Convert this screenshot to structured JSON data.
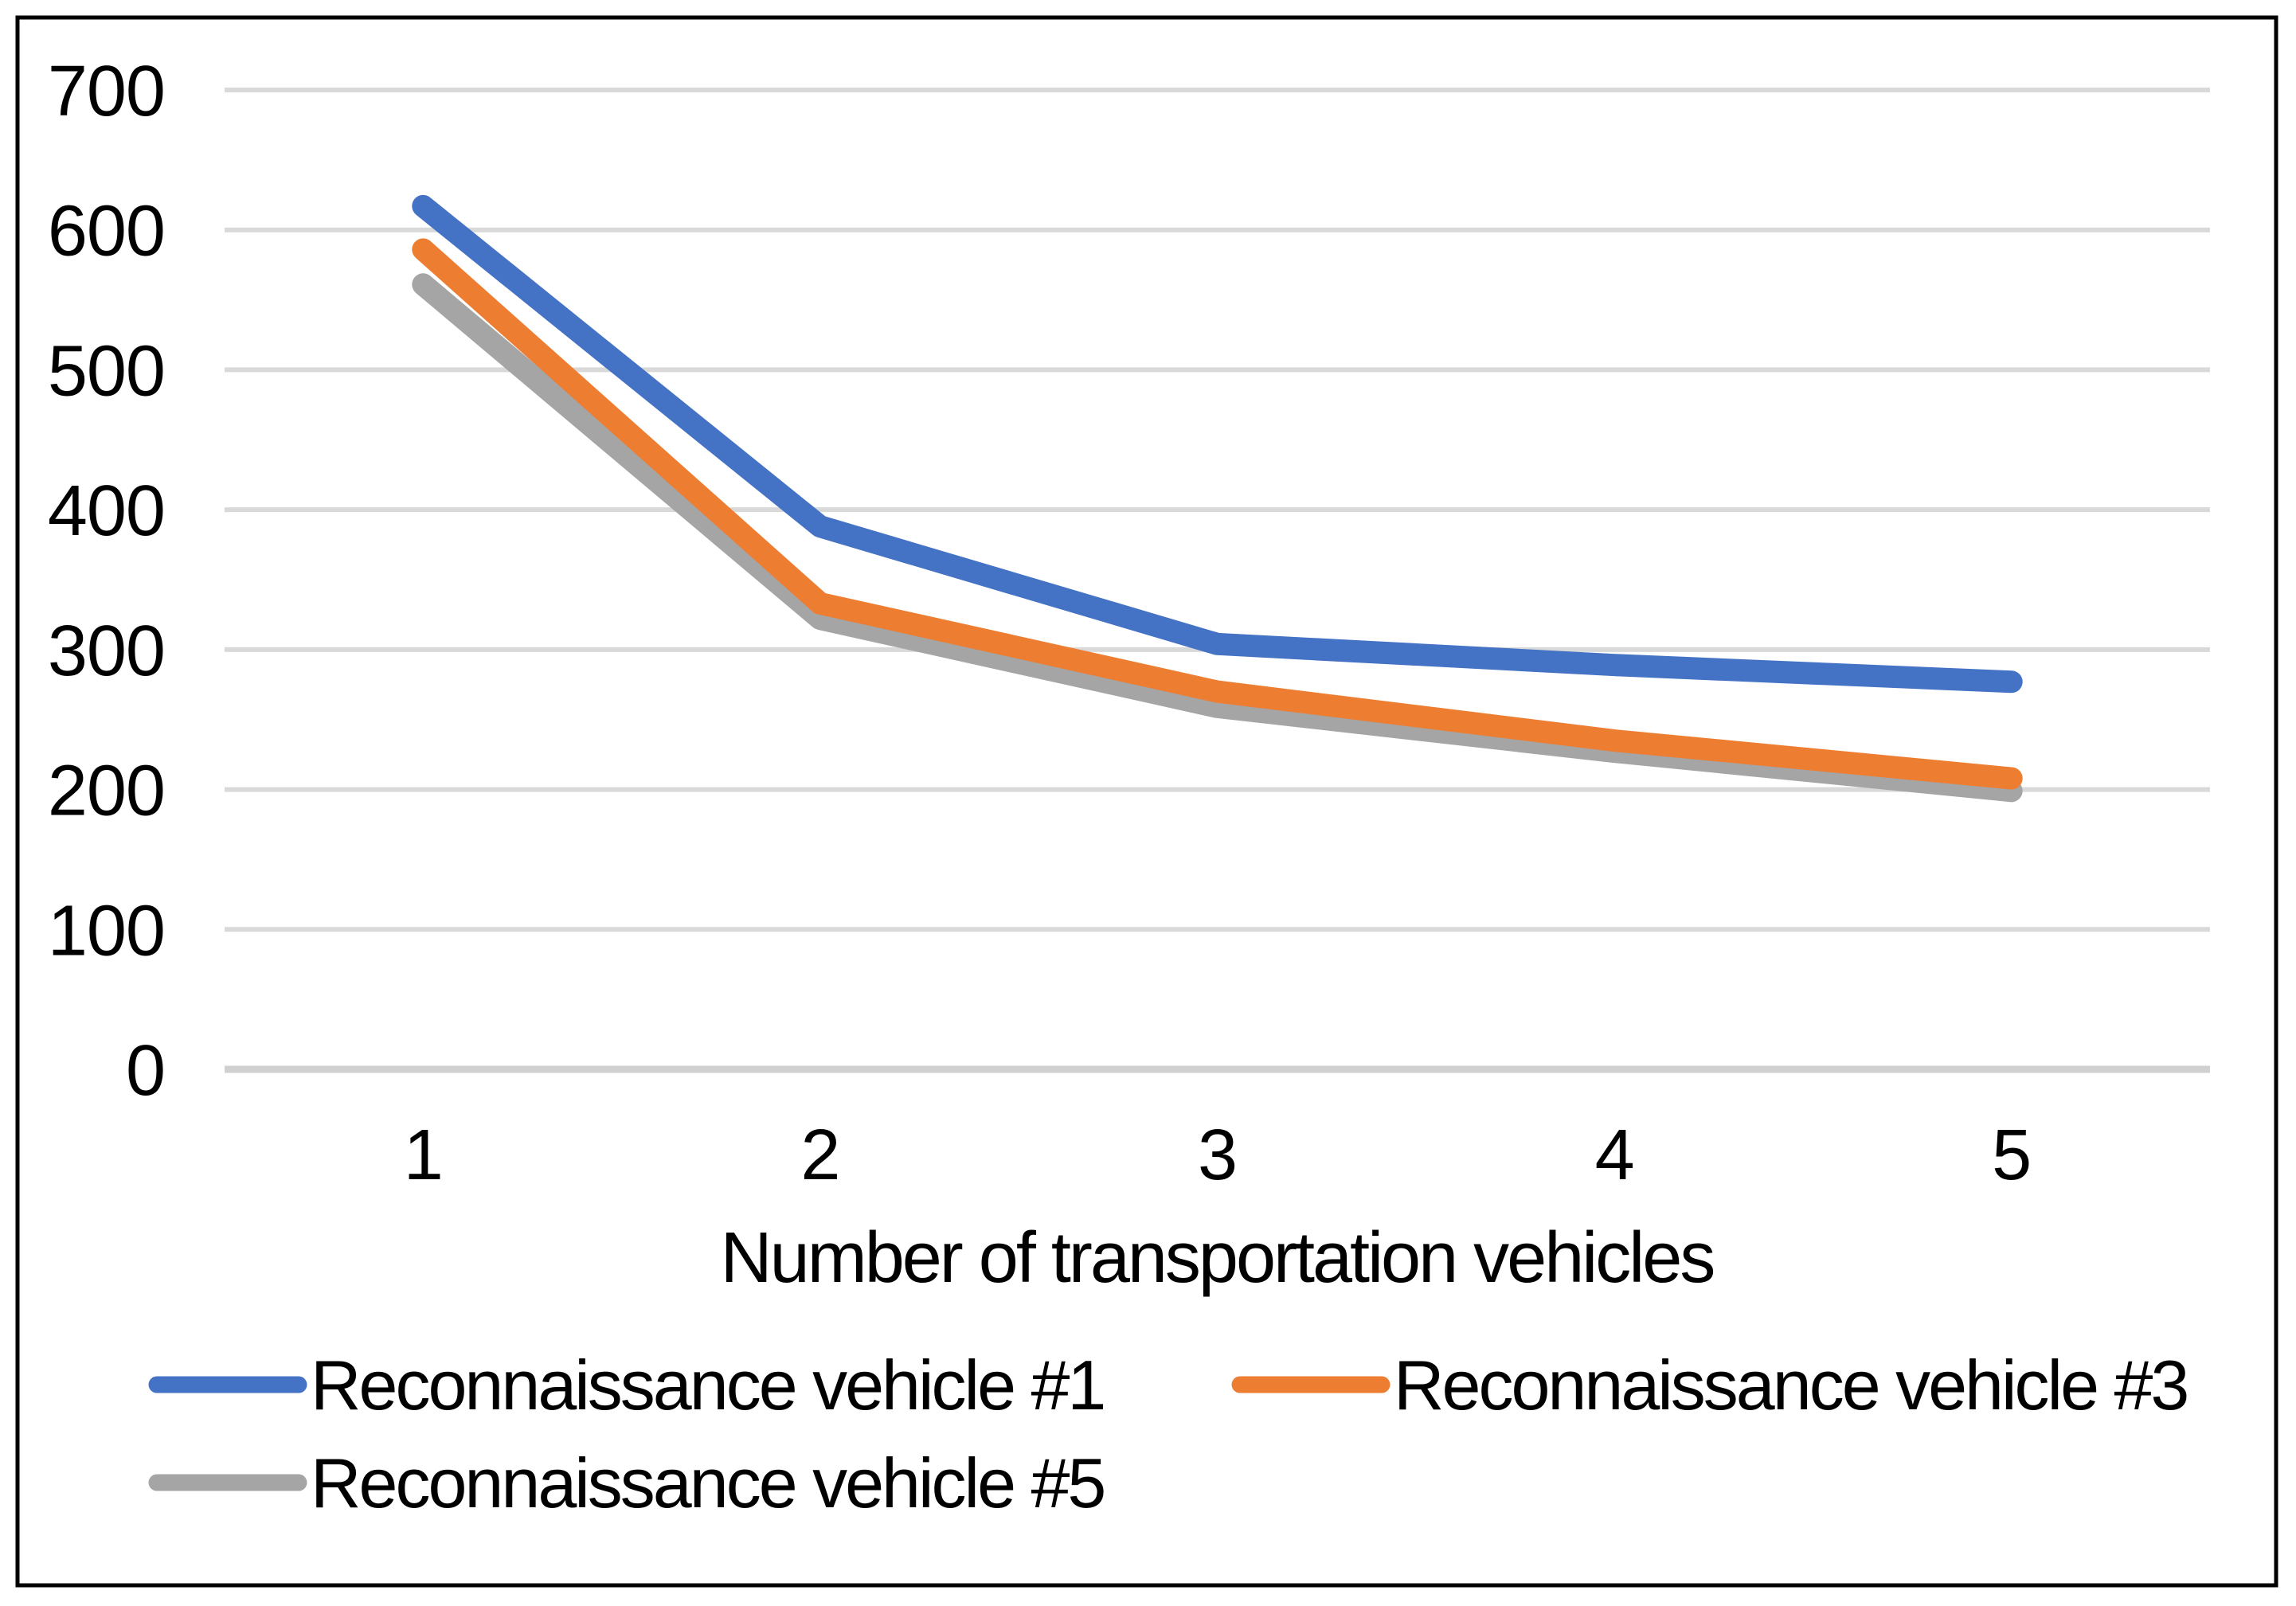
{
  "figure": {
    "background_color": "#ffffff",
    "frame_color": "#000000",
    "text_color": "#000000"
  },
  "chart_data": {
    "type": "line",
    "title": "",
    "xlabel": "Number of transportation vehicles",
    "ylabel": "",
    "categories": [
      "1",
      "2",
      "3",
      "4",
      "5"
    ],
    "series": [
      {
        "name": "Reconnaissance vehicle #1",
        "color": "#4472C4",
        "values": [
          617,
          388,
          304,
          289,
          277
        ]
      },
      {
        "name": "Reconnaissance vehicle #3",
        "color": "#ED7D31",
        "values": [
          586,
          333,
          270,
          235,
          208
        ]
      },
      {
        "name": "Reconnaissance vehicle #5",
        "color": "#A5A5A5",
        "values": [
          561,
          322,
          259,
          227,
          199
        ]
      }
    ],
    "ylim": [
      0,
      700
    ],
    "yticks": [
      0,
      100,
      200,
      300,
      400,
      500,
      600,
      700
    ],
    "grid": "horizontal",
    "gridline_color": "#D9D9D9",
    "axisline_color": "#D0D0D0",
    "legend_position": "bottom",
    "legend": [
      "Reconnaissance vehicle #1",
      "Reconnaissance vehicle #3",
      "Reconnaissance vehicle #5"
    ]
  }
}
